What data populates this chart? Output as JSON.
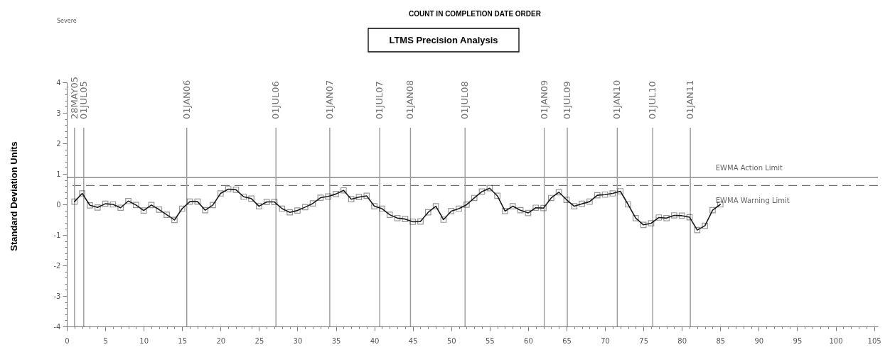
{
  "chart_data": {
    "type": "line",
    "title": "COUNT IN COMPLETION DATE ORDER",
    "subtitle": "LTMS Precision Analysis",
    "ylabel": "Standard Deviation Units",
    "annotations": [
      "Severe"
    ],
    "x": [
      1,
      2,
      3,
      4,
      5,
      6,
      7,
      8,
      9,
      10,
      11,
      12,
      13,
      14,
      15,
      16,
      17,
      18,
      19,
      20,
      21,
      22,
      23,
      24,
      25,
      26,
      27,
      28,
      29,
      30,
      31,
      32,
      33,
      34,
      35,
      36,
      37,
      38,
      39,
      40,
      41,
      42,
      43,
      44,
      45,
      46,
      47,
      48,
      49,
      50,
      51,
      52,
      53,
      54,
      55,
      56,
      57,
      58,
      59,
      60,
      61,
      62,
      63,
      64,
      65,
      66,
      67,
      68,
      69,
      70,
      71,
      72,
      73,
      74,
      75,
      76,
      77,
      78,
      79,
      80,
      81,
      82,
      83,
      84,
      85
    ],
    "series": [
      {
        "color": "#1a1a1a",
        "values": [
          0.09,
          0.36,
          -0.03,
          -0.1,
          0.02,
          0.0,
          -0.11,
          0.11,
          -0.02,
          -0.2,
          -0.02,
          -0.17,
          -0.34,
          -0.51,
          -0.14,
          0.09,
          0.09,
          -0.19,
          -0.02,
          0.36,
          0.5,
          0.48,
          0.25,
          0.19,
          -0.06,
          0.08,
          0.08,
          -0.14,
          -0.26,
          -0.2,
          -0.09,
          0.03,
          0.22,
          0.26,
          0.34,
          0.46,
          0.17,
          0.24,
          0.28,
          -0.06,
          -0.14,
          -0.34,
          -0.45,
          -0.48,
          -0.57,
          -0.56,
          -0.26,
          -0.06,
          -0.5,
          -0.22,
          -0.14,
          -0.01,
          0.21,
          0.42,
          0.53,
          0.28,
          -0.22,
          -0.06,
          -0.19,
          -0.28,
          -0.11,
          -0.12,
          0.21,
          0.4,
          0.15,
          -0.06,
          0.02,
          0.09,
          0.3,
          0.32,
          0.36,
          0.43,
          0.0,
          -0.45,
          -0.67,
          -0.62,
          -0.43,
          -0.45,
          -0.36,
          -0.37,
          -0.42,
          -0.84,
          -0.7,
          -0.19,
          0.0
        ]
      }
    ],
    "marker": "square",
    "line_style": "solid",
    "xlim": [
      0,
      105.5
    ],
    "xticks": [
      0,
      {
        "value": 1,
        "label": null
      },
      {
        "value": 2,
        "label": null
      },
      {
        "value": 3,
        "label": null
      },
      {
        "value": 4,
        "label": null
      },
      5,
      {
        "value": 6,
        "label": null
      },
      {
        "value": 7,
        "label": null
      },
      {
        "value": 8,
        "label": null
      },
      {
        "value": 9,
        "label": null
      },
      10,
      {
        "value": 11,
        "label": null
      },
      {
        "value": 12,
        "label": null
      },
      {
        "value": 13,
        "label": null
      },
      {
        "value": 14,
        "label": null
      },
      15,
      {
        "value": 16,
        "label": null
      },
      {
        "value": 17,
        "label": null
      },
      {
        "value": 18,
        "label": null
      },
      {
        "value": 19,
        "label": null
      },
      20,
      {
        "value": 21,
        "label": null
      },
      {
        "value": 22,
        "label": null
      },
      {
        "value": 23,
        "label": null
      },
      {
        "value": 24,
        "label": null
      },
      25,
      {
        "value": 26,
        "label": null
      },
      {
        "value": 27,
        "label": null
      },
      {
        "value": 28,
        "label": null
      },
      {
        "value": 29,
        "label": null
      },
      30,
      {
        "value": 31,
        "label": null
      },
      {
        "value": 32,
        "label": null
      },
      {
        "value": 33,
        "label": null
      },
      {
        "value": 34,
        "label": null
      },
      35,
      {
        "value": 36,
        "label": null
      },
      {
        "value": 37,
        "label": null
      },
      {
        "value": 38,
        "label": null
      },
      {
        "value": 39,
        "label": null
      },
      40,
      {
        "value": 41,
        "label": null
      },
      {
        "value": 42,
        "label": null
      },
      {
        "value": 43,
        "label": null
      },
      {
        "value": 44,
        "label": null
      },
      45,
      {
        "value": 46,
        "label": null
      },
      {
        "value": 47,
        "label": null
      },
      {
        "value": 48,
        "label": null
      },
      {
        "value": 49,
        "label": null
      },
      50,
      {
        "value": 51,
        "label": null
      },
      {
        "value": 52,
        "label": null
      },
      {
        "value": 53,
        "label": null
      },
      {
        "value": 54,
        "label": null
      },
      55,
      {
        "value": 56,
        "label": null
      },
      {
        "value": 57,
        "label": null
      },
      {
        "value": 58,
        "label": null
      },
      {
        "value": 59,
        "label": null
      },
      60,
      {
        "value": 61,
        "label": null
      },
      {
        "value": 62,
        "label": null
      },
      {
        "value": 63,
        "label": null
      },
      {
        "value": 64,
        "label": null
      },
      65,
      {
        "value": 66,
        "label": null
      },
      {
        "value": 67,
        "label": null
      },
      {
        "value": 68,
        "label": null
      },
      {
        "value": 69,
        "label": null
      },
      70,
      {
        "value": 71,
        "label": null
      },
      {
        "value": 72,
        "label": null
      },
      {
        "value": 73,
        "label": null
      },
      {
        "value": 74,
        "label": null
      },
      75,
      {
        "value": 76,
        "label": null
      },
      {
        "value": 77,
        "label": null
      },
      {
        "value": 78,
        "label": null
      },
      {
        "value": 79,
        "label": null
      },
      80,
      {
        "value": 81,
        "label": null
      },
      {
        "value": 82,
        "label": null
      },
      {
        "value": 83,
        "label": null
      },
      {
        "value": 84,
        "label": null
      },
      85,
      {
        "value": 86,
        "label": null
      },
      {
        "value": 87,
        "label": null
      },
      {
        "value": 88,
        "label": null
      },
      {
        "value": 89,
        "label": null
      },
      90,
      {
        "value": 91,
        "label": null
      },
      {
        "value": 92,
        "label": null
      },
      {
        "value": 93,
        "label": null
      },
      {
        "value": 94,
        "label": null
      },
      95,
      {
        "value": 96,
        "label": null
      },
      {
        "value": 97,
        "label": null
      },
      {
        "value": 98,
        "label": null
      },
      {
        "value": 99,
        "label": null
      },
      100,
      {
        "value": 101,
        "label": null
      },
      {
        "value": 102,
        "label": null
      },
      {
        "value": 103,
        "label": null
      },
      {
        "value": 104,
        "label": null
      },
      105
    ],
    "ylim": [
      -4,
      4
    ],
    "yticks": [
      -4,
      {
        "value": -3.8,
        "label": null
      },
      {
        "value": -3.6,
        "label": null
      },
      {
        "value": -3.4,
        "label": null
      },
      {
        "value": -3.2,
        "label": null
      },
      -3,
      {
        "value": -2.8,
        "label": null
      },
      {
        "value": -2.6,
        "label": null
      },
      {
        "value": -2.4,
        "label": null
      },
      {
        "value": -2.2,
        "label": null
      },
      -2,
      {
        "value": -1.8,
        "label": null
      },
      {
        "value": -1.6,
        "label": null
      },
      {
        "value": -1.4,
        "label": null
      },
      {
        "value": -1.2,
        "label": null
      },
      -1,
      {
        "value": -0.8,
        "label": null
      },
      {
        "value": -0.6,
        "label": null
      },
      {
        "value": -0.4,
        "label": null
      },
      {
        "value": -0.2,
        "label": null
      },
      0,
      {
        "value": 0.2,
        "label": null
      },
      {
        "value": 0.4,
        "label": null
      },
      {
        "value": 0.6,
        "label": null
      },
      {
        "value": 0.8,
        "label": null
      },
      1,
      {
        "value": 1.2,
        "label": null
      },
      {
        "value": 1.4,
        "label": null
      },
      {
        "value": 1.6,
        "label": null
      },
      {
        "value": 1.8,
        "label": null
      },
      2,
      {
        "value": 2.2,
        "label": null
      },
      {
        "value": 2.4,
        "label": null
      },
      {
        "value": 2.6,
        "label": null
      },
      {
        "value": 2.8,
        "label": null
      },
      3,
      {
        "value": 3.2,
        "label": null
      },
      {
        "value": 3.4,
        "label": null
      },
      {
        "value": 3.6,
        "label": null
      },
      {
        "value": 3.8,
        "label": null
      },
      4
    ],
    "ref_lines": [
      {
        "axis": "y",
        "value": 0.88,
        "label": "EWMA Action Limit",
        "color": "#555555",
        "line_style": "solid"
      },
      {
        "axis": "y",
        "value": 0.62,
        "label": "EWMA Warning Limit",
        "color": "#555555",
        "line_style": "dashed"
      },
      {
        "axis": "x",
        "value": 1,
        "label": "28MAY05",
        "color": "#999999"
      },
      {
        "axis": "x",
        "value": 2.2,
        "label": "01JUL05",
        "color": "#999999"
      },
      {
        "axis": "x",
        "value": 15.6,
        "label": "01JAN06",
        "color": "#999999"
      },
      {
        "axis": "x",
        "value": 27.2,
        "label": "01JUL06",
        "color": "#999999"
      },
      {
        "axis": "x",
        "value": 34.2,
        "label": "01JAN07",
        "color": "#999999"
      },
      {
        "axis": "x",
        "value": 40.7,
        "label": "01JUL07",
        "color": "#999999"
      },
      {
        "axis": "x",
        "value": 44.7,
        "label": "01JAN08",
        "color": "#999999"
      },
      {
        "axis": "x",
        "value": 51.8,
        "label": "01JUL08",
        "color": "#999999"
      },
      {
        "axis": "x",
        "value": 62.1,
        "label": "01JAN09",
        "color": "#999999"
      },
      {
        "axis": "x",
        "value": 65.1,
        "label": "01JUL09",
        "color": "#999999"
      },
      {
        "axis": "x",
        "value": 71.6,
        "label": "01JAN10",
        "color": "#999999"
      },
      {
        "axis": "x",
        "value": 76.2,
        "label": "01JUL10",
        "color": "#999999"
      },
      {
        "axis": "x",
        "value": 81.1,
        "label": "01JAN11",
        "color": "#999999"
      }
    ]
  }
}
